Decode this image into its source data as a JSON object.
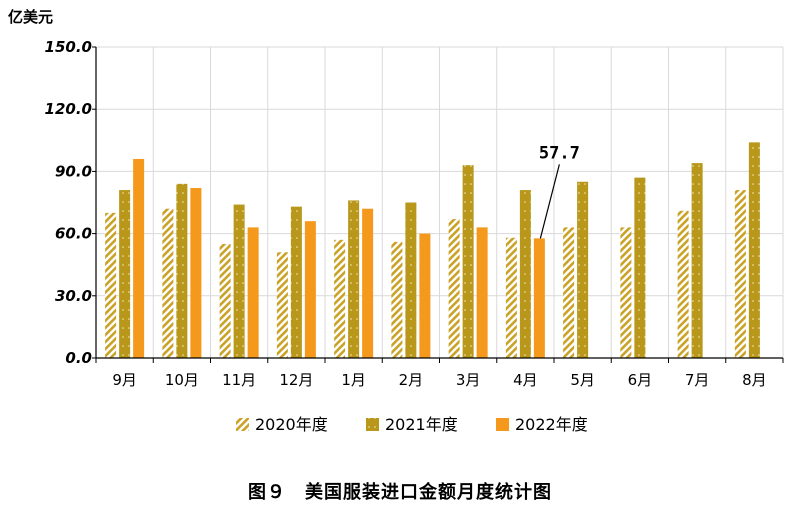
{
  "figure": {
    "unit_label": "亿美元",
    "caption": "图９　美国服装进口金额月度统计图"
  },
  "chart_data": {
    "type": "bar",
    "title": "",
    "xlabel": "",
    "ylabel": "亿美元",
    "ylim": [
      0,
      150
    ],
    "yticks": [
      "0.0",
      "30.0",
      "60.0",
      "90.0",
      "120.0",
      "150.0"
    ],
    "categories": [
      "9月",
      "10月",
      "11月",
      "12月",
      "1月",
      "2月",
      "3月",
      "4月",
      "5月",
      "6月",
      "7月",
      "8月"
    ],
    "series": [
      {
        "name": "2020年度",
        "color": "#c9a227",
        "pattern": "hatched",
        "values": [
          70,
          72,
          55,
          51,
          57,
          56,
          67,
          58,
          63,
          63,
          71,
          81
        ]
      },
      {
        "name": "2021年度",
        "color": "#b8971a",
        "pattern": "dotted",
        "values": [
          81,
          84,
          74,
          73,
          76,
          75,
          93,
          81,
          85,
          87,
          94,
          104
        ]
      },
      {
        "name": "2022年度",
        "color": "#f5991c",
        "pattern": "solid",
        "values": [
          96,
          82,
          63,
          66,
          72,
          60,
          63,
          57.7,
          null,
          null,
          null,
          null
        ]
      }
    ],
    "annotations": [
      {
        "text": "57.7",
        "category": "4月",
        "series": "2022年度",
        "value": 57.7
      }
    ],
    "grid": true,
    "legend": "bottom"
  }
}
